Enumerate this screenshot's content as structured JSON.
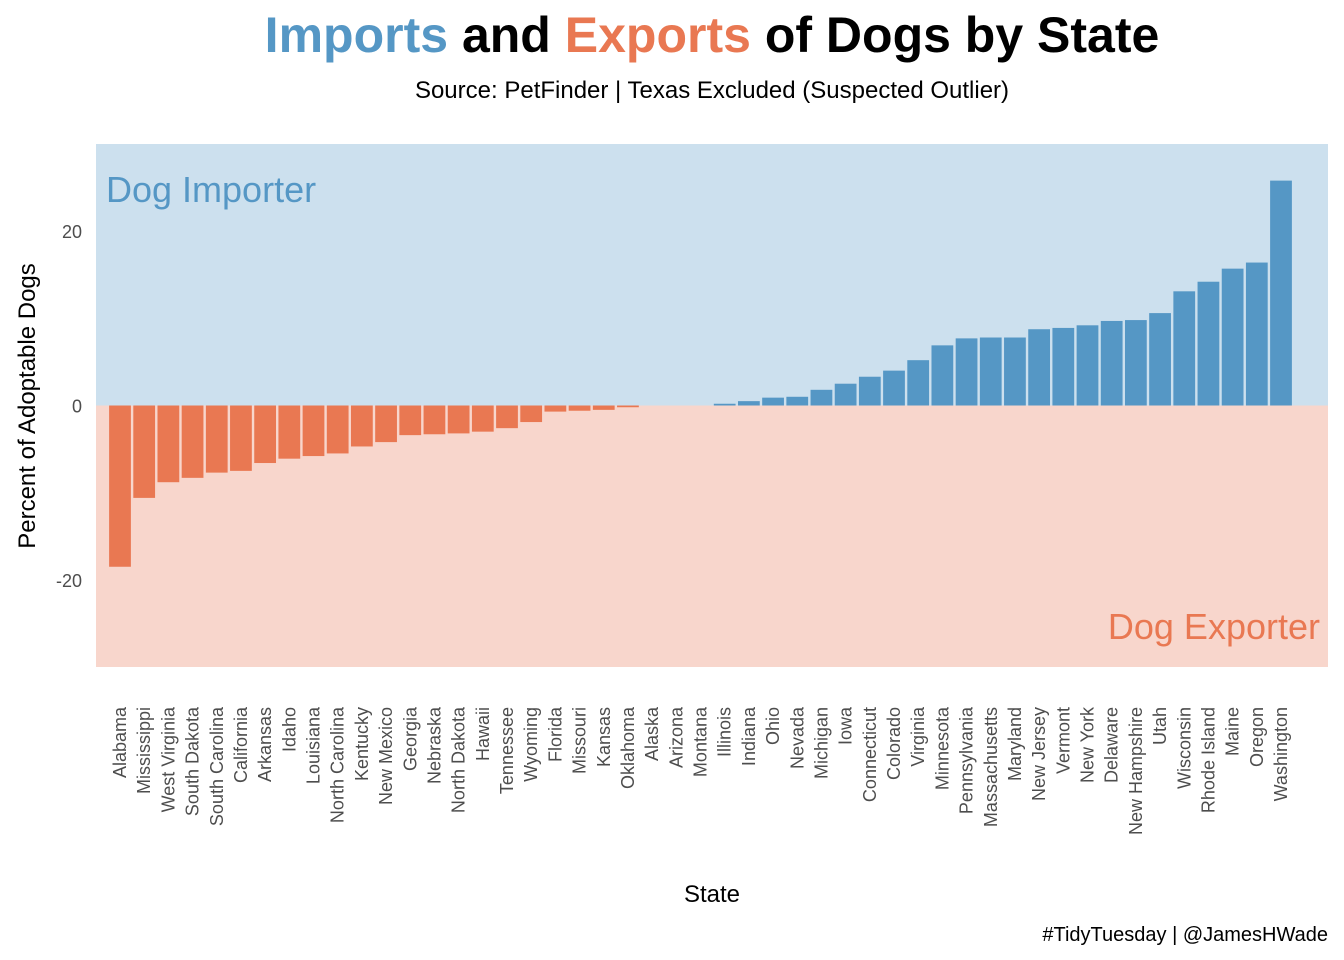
{
  "chart_data": {
    "type": "bar",
    "title": [
      "Imports",
      "and",
      "Exports",
      "of Dogs by State"
    ],
    "subtitle": "Source: PetFinder | Texas Excluded (Suspected Outlier)",
    "caption": "#TidyTuesday | @JamesHWade",
    "x_label": "State",
    "y_label": "Percent of Adoptable Dogs",
    "annotations": [
      "Dog Importer",
      "Dog Exporter"
    ],
    "categories": [
      "Alabama",
      "Mississippi",
      "West Virginia",
      "South Dakota",
      "South Carolina",
      "California",
      "Arkansas",
      "Idaho",
      "Louisiana",
      "North Carolina",
      "Kentucky",
      "New Mexico",
      "Georgia",
      "Nebraska",
      "North Dakota",
      "Hawaii",
      "Tennessee",
      "Wyoming",
      "Florida",
      "Missouri",
      "Kansas",
      "Oklahoma",
      "Alaska",
      "Arizona",
      "Montana",
      "Illinois",
      "Indiana",
      "Ohio",
      "Nevada",
      "Michigan",
      "Iowa",
      "Connecticut",
      "Colorado",
      "Virginia",
      "Minnesota",
      "Pennsylvania",
      "Massachusetts",
      "Maryland",
      "New Jersey",
      "Vermont",
      "New York",
      "Delaware",
      "New Hampshire",
      "Utah",
      "Wisconsin",
      "Rhode Island",
      "Maine",
      "Oregon",
      "Washington"
    ],
    "values": [
      -18.5,
      -10.6,
      -8.8,
      -8.3,
      -7.7,
      -7.5,
      -6.6,
      -6.1,
      -5.8,
      -5.5,
      -4.7,
      -4.2,
      -3.4,
      -3.3,
      -3.2,
      -3.0,
      -2.6,
      -1.9,
      -0.7,
      -0.6,
      -0.5,
      -0.2,
      0,
      0,
      0,
      0.2,
      0.5,
      0.9,
      1.0,
      1.8,
      2.5,
      3.3,
      4.0,
      5.2,
      6.9,
      7.7,
      7.8,
      7.8,
      8.75,
      8.9,
      9.2,
      9.7,
      9.8,
      10.6,
      13.1,
      14.2,
      15.7,
      16.4,
      25.8
    ],
    "positive_color": "#5597c5",
    "negative_color": "#e97852",
    "ylim": [
      -30,
      30
    ],
    "yticks": [
      -20,
      0,
      20
    ],
    "grid": false
  }
}
